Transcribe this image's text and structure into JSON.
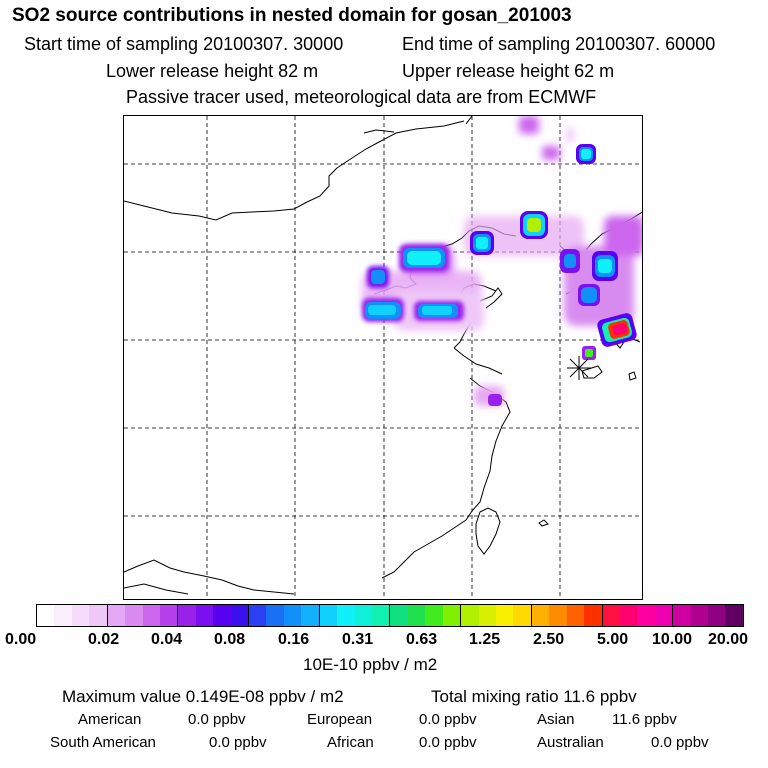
{
  "title": "SO2 source contributions in nested domain for gosan_201003",
  "sampling": {
    "start": "Start time of sampling 20100307. 30000",
    "end": "End time of sampling 20100307. 60000"
  },
  "release": {
    "lower": "Lower release height   82 m",
    "upper": "Upper release height   62 m"
  },
  "note": "Passive tracer used, meteorological data are from ECMWF",
  "colorbar": {
    "ticks": [
      "0.00",
      "0.02",
      "0.04",
      "0.08",
      "0.16",
      "0.31",
      "0.63",
      "1.25",
      "2.50",
      "5.00",
      "10.00",
      "20.00"
    ],
    "unit": "10E-10 ppbv / m2",
    "colors": [
      "#ffffff",
      "#fbeefc",
      "#f5dcfa",
      "#efc8f8",
      "#e6a8f4",
      "#d98cf0",
      "#cc66ee",
      "#b840ec",
      "#9a20ec",
      "#7a10f0",
      "#5a00f2",
      "#3a10ee",
      "#2a40f2",
      "#1a70f4",
      "#1090f8",
      "#10b0fa",
      "#10d0fc",
      "#10f0f8",
      "#10f0d8",
      "#10f0b0",
      "#10e080",
      "#20e050",
      "#40ec20",
      "#80f000",
      "#b0f000",
      "#d8f000",
      "#f8f000",
      "#ffd800",
      "#ffb000",
      "#ff8c00",
      "#ff6000",
      "#ff3000",
      "#ff1040",
      "#ff0070",
      "#ff00a0",
      "#f000b0",
      "#d000a0",
      "#b00090",
      "#900080",
      "#600060"
    ]
  },
  "stats": {
    "maximum": "Maximum value  0.149E-08 ppbv / m2",
    "total": "Total mixing ratio       11.6 ppbv",
    "american": "American",
    "american_val": "0.0 ppbv",
    "european": "European",
    "european_val": "0.0 ppbv",
    "asian": "Asian",
    "asian_val": "11.6 ppbv",
    "south_american": "South American",
    "south_american_val": "0.0 ppbv",
    "african": "African",
    "african_val": "0.0 ppbv",
    "australian": "Australian",
    "australian_val": "0.0 ppbv"
  }
}
